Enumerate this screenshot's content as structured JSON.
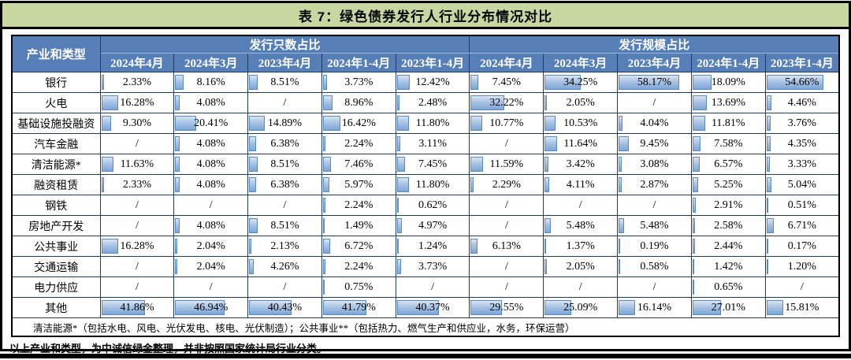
{
  "title": "表 7：绿色债券发行人行业分布情况对比",
  "colors": {
    "title_bg": "#c8d7a0",
    "header_bg": "#567fb7",
    "header_text": "#ffffff",
    "bar_fill_top": "#d9e4f3",
    "bar_fill_bottom": "#7ea6d6",
    "bar_border": "#5a8ac6",
    "grid_border": "#1f3c65",
    "outer_border": "#000000"
  },
  "table": {
    "corner_header": "产业和类型",
    "groups": [
      {
        "label": "发行只数占比"
      },
      {
        "label": "发行规模占比"
      }
    ],
    "periods": [
      "2024年4月",
      "2024年3月",
      "2023年4月",
      "2024年1-4月",
      "2023年1-4月"
    ],
    "bar_scale_max": 70,
    "rows": [
      {
        "label": "银行",
        "count_share": [
          "2.33%",
          "8.16%",
          "8.51%",
          "3.73%",
          "12.42%"
        ],
        "scale_share": [
          "7.45%",
          "34.25%",
          "58.17%",
          "18.09%",
          "54.66%"
        ]
      },
      {
        "label": "火电",
        "count_share": [
          "16.28%",
          "4.08%",
          "/",
          "8.96%",
          "2.48%"
        ],
        "scale_share": [
          "32.22%",
          "2.05%",
          "/",
          "13.69%",
          "4.46%"
        ]
      },
      {
        "label": "基础设施投融资",
        "count_share": [
          "9.30%",
          "20.41%",
          "14.89%",
          "16.42%",
          "11.80%"
        ],
        "scale_share": [
          "10.77%",
          "10.53%",
          "4.04%",
          "11.81%",
          "3.76%"
        ]
      },
      {
        "label": "汽车金融",
        "count_share": [
          "/",
          "4.08%",
          "6.38%",
          "2.24%",
          "3.11%"
        ],
        "scale_share": [
          "/",
          "11.64%",
          "9.45%",
          "7.58%",
          "4.35%"
        ]
      },
      {
        "label": "清洁能源*",
        "count_share": [
          "11.63%",
          "4.08%",
          "8.51%",
          "7.46%",
          "7.45%"
        ],
        "scale_share": [
          "11.59%",
          "3.42%",
          "3.08%",
          "6.57%",
          "3.33%"
        ]
      },
      {
        "label": "融资租赁",
        "count_share": [
          "2.33%",
          "4.08%",
          "6.38%",
          "5.97%",
          "11.80%"
        ],
        "scale_share": [
          "2.29%",
          "4.11%",
          "2.87%",
          "5.25%",
          "5.04%"
        ]
      },
      {
        "label": "钢铁",
        "count_share": [
          "/",
          "/",
          "/",
          "2.24%",
          "0.62%"
        ],
        "scale_share": [
          "/",
          "/",
          "/",
          "2.91%",
          "0.51%"
        ]
      },
      {
        "label": "房地产开发",
        "count_share": [
          "/",
          "4.08%",
          "8.51%",
          "1.49%",
          "4.97%"
        ],
        "scale_share": [
          "/",
          "5.48%",
          "5.48%",
          "2.58%",
          "6.71%"
        ]
      },
      {
        "label": "公共事业",
        "count_share": [
          "16.28%",
          "2.04%",
          "2.13%",
          "6.72%",
          "1.24%"
        ],
        "scale_share": [
          "6.13%",
          "1.37%",
          "0.19%",
          "2.44%",
          "0.17%"
        ]
      },
      {
        "label": "交通运输",
        "count_share": [
          "/",
          "2.04%",
          "4.26%",
          "2.24%",
          "3.73%"
        ],
        "scale_share": [
          "/",
          "2.05%",
          "0.58%",
          "1.42%",
          "1.20%"
        ]
      },
      {
        "label": "电力供应",
        "count_share": [
          "/",
          "/",
          "/",
          "0.75%",
          "/"
        ],
        "scale_share": [
          "/",
          "/",
          "/",
          "0.65%",
          "/"
        ]
      },
      {
        "label": "其他",
        "count_share": [
          "41.86%",
          "46.94%",
          "40.43%",
          "41.79%",
          "40.37%"
        ],
        "scale_share": [
          "29.55%",
          "25.09%",
          "16.14%",
          "27.01%",
          "15.81%"
        ]
      }
    ],
    "footnote": "清洁能源*（包括水电、风电、光伏发电、核电、光伏制造）；公共事业**（包括热力、燃气生产和供应业，水务，环保运营）"
  },
  "bottom_note": "以上产业和类型，为中诚信绿金整理，并非按照国家统计局行业分类。",
  "chart_data": {
    "type": "table",
    "title": "表 7：绿色债券发行人行业分布情况对比",
    "unit": "%",
    "row_header": "产业和类型",
    "column_groups": [
      {
        "name": "发行只数占比",
        "columns": [
          "2024年4月",
          "2024年3月",
          "2023年4月",
          "2024年1-4月",
          "2023年1-4月"
        ]
      },
      {
        "name": "发行规模占比",
        "columns": [
          "2024年4月",
          "2024年3月",
          "2023年4月",
          "2024年1-4月",
          "2023年1-4月"
        ]
      }
    ],
    "rows": [
      {
        "industry": "银行",
        "count_share_pct": [
          2.33,
          8.16,
          8.51,
          3.73,
          12.42
        ],
        "scale_share_pct": [
          7.45,
          34.25,
          58.17,
          18.09,
          54.66
        ]
      },
      {
        "industry": "火电",
        "count_share_pct": [
          16.28,
          4.08,
          null,
          8.96,
          2.48
        ],
        "scale_share_pct": [
          32.22,
          2.05,
          null,
          13.69,
          4.46
        ]
      },
      {
        "industry": "基础设施投融资",
        "count_share_pct": [
          9.3,
          20.41,
          14.89,
          16.42,
          11.8
        ],
        "scale_share_pct": [
          10.77,
          10.53,
          4.04,
          11.81,
          3.76
        ]
      },
      {
        "industry": "汽车金融",
        "count_share_pct": [
          null,
          4.08,
          6.38,
          2.24,
          3.11
        ],
        "scale_share_pct": [
          null,
          11.64,
          9.45,
          7.58,
          4.35
        ]
      },
      {
        "industry": "清洁能源*",
        "count_share_pct": [
          11.63,
          4.08,
          8.51,
          7.46,
          7.45
        ],
        "scale_share_pct": [
          11.59,
          3.42,
          3.08,
          6.57,
          3.33
        ]
      },
      {
        "industry": "融资租赁",
        "count_share_pct": [
          2.33,
          4.08,
          6.38,
          5.97,
          11.8
        ],
        "scale_share_pct": [
          2.29,
          4.11,
          2.87,
          5.25,
          5.04
        ]
      },
      {
        "industry": "钢铁",
        "count_share_pct": [
          null,
          null,
          null,
          2.24,
          0.62
        ],
        "scale_share_pct": [
          null,
          null,
          null,
          2.91,
          0.51
        ]
      },
      {
        "industry": "房地产开发",
        "count_share_pct": [
          null,
          4.08,
          8.51,
          1.49,
          4.97
        ],
        "scale_share_pct": [
          null,
          5.48,
          5.48,
          2.58,
          6.71
        ]
      },
      {
        "industry": "公共事业",
        "count_share_pct": [
          16.28,
          2.04,
          2.13,
          6.72,
          1.24
        ],
        "scale_share_pct": [
          6.13,
          1.37,
          0.19,
          2.44,
          0.17
        ]
      },
      {
        "industry": "交通运输",
        "count_share_pct": [
          null,
          2.04,
          4.26,
          2.24,
          3.73
        ],
        "scale_share_pct": [
          null,
          2.05,
          0.58,
          1.42,
          1.2
        ]
      },
      {
        "industry": "电力供应",
        "count_share_pct": [
          null,
          null,
          null,
          0.75,
          null
        ],
        "scale_share_pct": [
          null,
          null,
          null,
          0.65,
          null
        ]
      },
      {
        "industry": "其他",
        "count_share_pct": [
          41.86,
          46.94,
          40.43,
          41.79,
          40.37
        ],
        "scale_share_pct": [
          29.55,
          25.09,
          16.14,
          27.01,
          15.81
        ]
      }
    ],
    "notes": [
      "清洁能源*（包括水电、风电、光伏发电、核电、光伏制造）；公共事业**（包括热力、燃气生产和供应业，水务，环保运营）",
      "以上产业和类型，为中诚信绿金整理，并非按照国家统计局行业分类。"
    ],
    "style": {
      "data_bars": true,
      "bar_scale_max_pct": 70,
      "missing_marker": "/"
    }
  }
}
